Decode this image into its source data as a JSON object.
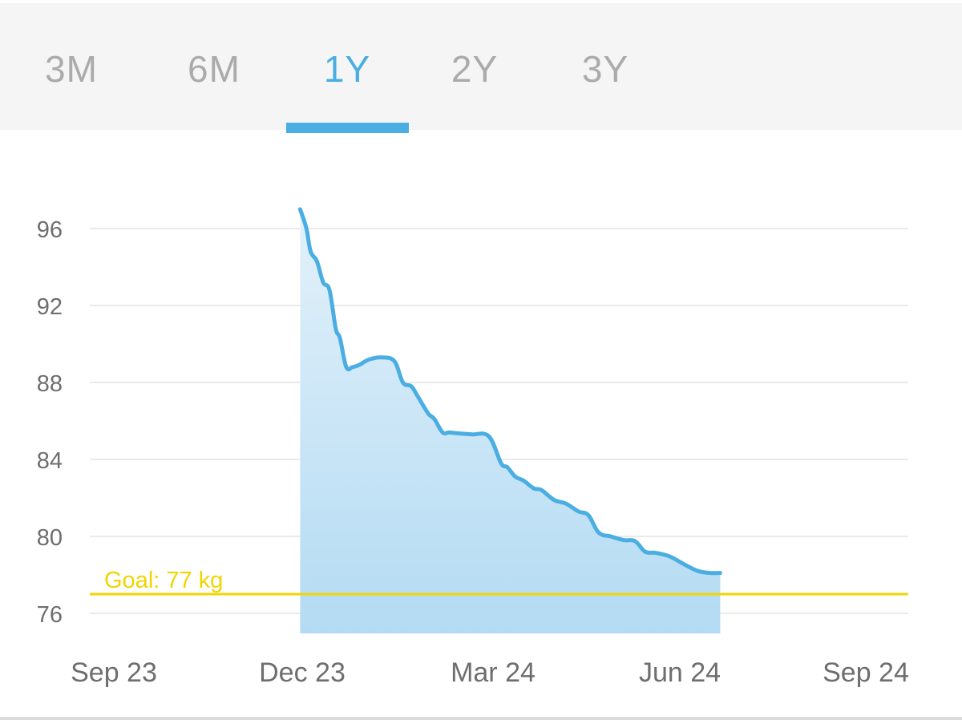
{
  "tabs": [
    {
      "id": "3m",
      "label": "3M",
      "active": false
    },
    {
      "id": "6m",
      "label": "6M",
      "active": false
    },
    {
      "id": "1y",
      "label": "1Y",
      "active": true
    },
    {
      "id": "2y",
      "label": "2Y",
      "active": false
    },
    {
      "id": "3y",
      "label": "3Y",
      "active": false
    }
  ],
  "colors": {
    "accent": "#4aaee3",
    "inactive_tab": "#ababab",
    "line": "#4aaee3",
    "area_top": "#e3f1fa",
    "area_bottom": "#b3dbf3",
    "goal": "#f2d400",
    "grid": "#e4e4e4",
    "axis_text": "#6e6e6e"
  },
  "chart_data": {
    "type": "area",
    "title": "",
    "xlabel": "",
    "ylabel": "",
    "x_ticks": [
      "Sep 23",
      "Dec 23",
      "Mar 24",
      "Jun 24",
      "Sep 24"
    ],
    "x_range": [
      "2023-09-01",
      "2024-09-01"
    ],
    "y_ticks": [
      96,
      92,
      88,
      84,
      80,
      76
    ],
    "ylim": [
      75.0,
      97.0
    ],
    "grid": "horizontal",
    "goal": {
      "value": 77,
      "label": "Goal: 77 kg"
    },
    "series": [
      {
        "x": [
          "2023-11-30",
          "2023-12-03",
          "2023-12-05",
          "2023-12-08",
          "2023-12-11",
          "2023-12-14",
          "2023-12-17",
          "2023-12-19",
          "2023-12-22",
          "2023-12-25",
          "2023-12-28",
          "2024-01-02",
          "2024-01-08",
          "2024-01-14",
          "2024-01-18",
          "2024-01-22",
          "2024-01-25",
          "2024-01-30",
          "2024-02-02",
          "2024-02-06",
          "2024-02-09",
          "2024-02-14",
          "2024-02-20",
          "2024-02-28",
          "2024-03-05",
          "2024-03-08",
          "2024-03-12",
          "2024-03-16",
          "2024-03-21",
          "2024-03-25",
          "2024-03-31",
          "2024-04-06",
          "2024-04-12",
          "2024-04-17",
          "2024-04-22",
          "2024-04-28",
          "2024-05-01",
          "2024-05-05",
          "2024-05-10",
          "2024-05-15",
          "2024-05-20",
          "2024-05-26",
          "2024-05-30",
          "2024-06-04",
          "2024-06-10",
          "2024-06-16",
          "2024-06-21"
        ],
        "y": [
          97.0,
          96.0,
          94.8,
          94.3,
          93.2,
          92.8,
          90.8,
          90.3,
          88.8,
          88.8,
          88.9,
          89.2,
          89.3,
          89.1,
          88.0,
          87.8,
          87.3,
          86.4,
          86.1,
          85.4,
          85.4,
          85.35,
          85.3,
          85.2,
          83.8,
          83.6,
          83.1,
          82.9,
          82.5,
          82.4,
          81.9,
          81.7,
          81.3,
          81.1,
          80.2,
          80.0,
          79.9,
          79.8,
          79.75,
          79.2,
          79.15,
          79.0,
          78.8,
          78.5,
          78.2,
          78.1,
          78.1
        ]
      }
    ]
  }
}
